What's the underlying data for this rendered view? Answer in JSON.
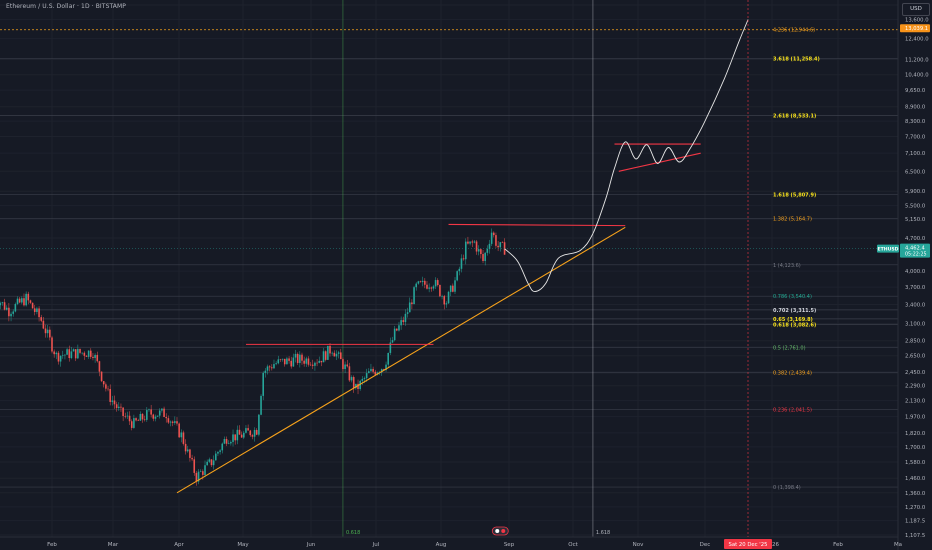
{
  "header": {
    "symbol_title": "Ethereum / U.S. Dollar · 1D · BITSTAMP",
    "currency": "USD"
  },
  "colors": {
    "background": "#161a25",
    "grid": "#1e222d",
    "up_candle": "#26a69a",
    "down_candle": "#ef5350",
    "trendline": "#f7a21b",
    "resistance": "#f23645",
    "projection": "#e6e6e6",
    "price_tag": "#26a69a",
    "target_tag": "#f7931a",
    "date_tag": "#f23645"
  },
  "chart_data": {
    "type": "candlestick",
    "x_axis_labels": [
      "Feb",
      "Mar",
      "Apr",
      "May",
      "Jun",
      "Jul",
      "Aug",
      "Sep",
      "Oct",
      "Nov",
      "Dec",
      "2026",
      "Feb",
      "Ma"
    ],
    "y_scale": "log",
    "y_tick_labels": [
      "14,600.0",
      "13,600.0",
      "12,400.0",
      "11,200.0",
      "10,400.0",
      "9,650.0",
      "8,900.0",
      "8,300.0",
      "7,700.0",
      "7,100.0",
      "6,500.0",
      "5,900.0",
      "5,500.0",
      "5,150.0",
      "4,700.0",
      "4,000.0",
      "3,700.0",
      "3,400.0",
      "3,100.0",
      "2,850.0",
      "2,650.0",
      "2,450.0",
      "2,290.0",
      "2,130.0",
      "1,970.0",
      "1,820.0",
      "1,700.0",
      "1,580.0",
      "1,460.0",
      "1,360.0",
      "1,270.0",
      "1,187.5",
      "1,107.5"
    ],
    "y_tick_values": [
      14600,
      13600,
      12400,
      11200,
      10400,
      9650,
      8900,
      8300,
      7700,
      7100,
      6500,
      5900,
      5500,
      5150,
      4700,
      4000,
      3700,
      3400,
      3100,
      2850,
      2650,
      2450,
      2290,
      2130,
      1970,
      1820,
      1700,
      1580,
      1460,
      1360,
      1270,
      1187.5,
      1107.5
    ],
    "current_price": {
      "symbol": "ETHUSD",
      "value": "4,462.4",
      "countdown": "05:22:25",
      "value_num": 4462.4
    },
    "target_price": {
      "value": "13,039.1",
      "value_num": 13039.1
    },
    "crosshair_date": "Sat 20 Dec '25",
    "fib_levels": [
      {
        "label": "4.236 (12,944.6)",
        "value": 12944.6,
        "color": "#f7a21b",
        "bold": false
      },
      {
        "label": "3.618 (11,258.4)",
        "value": 11258.4,
        "color": "#f7e11b",
        "bold": true
      },
      {
        "label": "2.618 (8,533.1)",
        "value": 8533.1,
        "color": "#f7e11b",
        "bold": true
      },
      {
        "label": "1.618 (5,807.9)",
        "value": 5807.9,
        "color": "#f7e11b",
        "bold": true
      },
      {
        "label": "1.382 (5,164.7)",
        "value": 5164.7,
        "color": "#f7a21b",
        "bold": false
      },
      {
        "label": "1 (4,123.6)",
        "value": 4123.6,
        "color": "#787b86",
        "bold": false
      },
      {
        "label": "0.786 (3,540.4)",
        "value": 3540.4,
        "color": "#22ab94",
        "bold": false
      },
      {
        "label": "0.702 (3,311.5)",
        "value": 3311.5,
        "color": "#d1d4dc",
        "bold": true
      },
      {
        "label": "0.65 (3,169.8)",
        "value": 3169.8,
        "color": "#f7e11b",
        "bold": true
      },
      {
        "label": "0.618 (3,082.6)",
        "value": 3082.6,
        "color": "#f7e11b",
        "bold": true
      },
      {
        "label": "0.5 (2,761.0)",
        "value": 2761.0,
        "color": "#66bb6a",
        "bold": false
      },
      {
        "label": "0.382 (2,439.4)",
        "value": 2439.4,
        "color": "#f7a21b",
        "bold": false
      },
      {
        "label": "0.236 (2,041.5)",
        "value": 2041.5,
        "color": "#f23645",
        "bold": false
      },
      {
        "label": "0 (1,398.4)",
        "value": 1398.4,
        "color": "#787b86",
        "bold": false
      }
    ],
    "vertical_markers": [
      {
        "label": "0.618",
        "date": "2025-06-16",
        "color": "#4caf50"
      },
      {
        "label": "1.618",
        "date": "2025-10-10",
        "color": "#b2b5be"
      }
    ],
    "projection_path": [
      {
        "date": "2025-08-30",
        "value": 4460
      },
      {
        "date": "2025-09-05",
        "value": 4200
      },
      {
        "date": "2025-09-10",
        "value": 3760
      },
      {
        "date": "2025-09-13",
        "value": 3620
      },
      {
        "date": "2025-09-18",
        "value": 3760
      },
      {
        "date": "2025-09-24",
        "value": 4260
      },
      {
        "date": "2025-10-04",
        "value": 4420
      },
      {
        "date": "2025-10-10",
        "value": 4800
      },
      {
        "date": "2025-10-16",
        "value": 5700
      },
      {
        "date": "2025-10-20",
        "value": 6600
      },
      {
        "date": "2025-10-25",
        "value": 7500
      },
      {
        "date": "2025-10-30",
        "value": 6900
      },
      {
        "date": "2025-11-04",
        "value": 7400
      },
      {
        "date": "2025-11-09",
        "value": 6750
      },
      {
        "date": "2025-11-14",
        "value": 7300
      },
      {
        "date": "2025-11-19",
        "value": 6800
      },
      {
        "date": "2025-11-24",
        "value": 7250
      },
      {
        "date": "2025-12-01",
        "value": 8300
      },
      {
        "date": "2025-12-10",
        "value": 10200
      },
      {
        "date": "2025-12-17",
        "value": 12300
      },
      {
        "date": "2025-12-21",
        "value": 13600
      }
    ],
    "drawn_lines": [
      {
        "kind": "trendline",
        "from": {
          "date": "2025-03-31",
          "value": 1360
        },
        "to": {
          "date": "2025-10-25",
          "value": 4950
        }
      },
      {
        "kind": "resistance",
        "from": {
          "date": "2025-05-02",
          "value": 2800
        },
        "to": {
          "date": "2025-07-28",
          "value": 2800
        }
      },
      {
        "kind": "resistance",
        "from": {
          "date": "2025-08-04",
          "value": 5020
        },
        "to": {
          "date": "2025-10-25",
          "value": 4990
        }
      },
      {
        "kind": "resistance",
        "from": {
          "date": "2025-10-20",
          "value": 7420
        },
        "to": {
          "date": "2025-11-29",
          "value": 7420
        }
      },
      {
        "kind": "resistance",
        "from": {
          "date": "2025-10-22",
          "value": 6500
        },
        "to": {
          "date": "2025-11-29",
          "value": 7100
        }
      }
    ],
    "price_closes": [
      {
        "date": "2025-01-05",
        "value": 3550
      },
      {
        "date": "2025-01-12",
        "value": 3300
      },
      {
        "date": "2025-01-20",
        "value": 3500
      },
      {
        "date": "2025-01-27",
        "value": 3150
      },
      {
        "date": "2025-02-03",
        "value": 2650
      },
      {
        "date": "2025-02-10",
        "value": 2680
      },
      {
        "date": "2025-02-20",
        "value": 2700
      },
      {
        "date": "2025-02-27",
        "value": 2200
      },
      {
        "date": "2025-03-05",
        "value": 2000
      },
      {
        "date": "2025-03-11",
        "value": 1900
      },
      {
        "date": "2025-03-18",
        "value": 2000
      },
      {
        "date": "2025-03-26",
        "value": 2000
      },
      {
        "date": "2025-04-02",
        "value": 1800
      },
      {
        "date": "2025-04-09",
        "value": 1470
      },
      {
        "date": "2025-04-16",
        "value": 1580
      },
      {
        "date": "2025-04-23",
        "value": 1780
      },
      {
        "date": "2025-04-30",
        "value": 1800
      },
      {
        "date": "2025-05-07",
        "value": 1850
      },
      {
        "date": "2025-05-10",
        "value": 2450
      },
      {
        "date": "2025-05-15",
        "value": 2550
      },
      {
        "date": "2025-05-25",
        "value": 2600
      },
      {
        "date": "2025-06-05",
        "value": 2600
      },
      {
        "date": "2025-06-11",
        "value": 2750
      },
      {
        "date": "2025-06-17",
        "value": 2500
      },
      {
        "date": "2025-06-22",
        "value": 2250
      },
      {
        "date": "2025-06-28",
        "value": 2430
      },
      {
        "date": "2025-07-05",
        "value": 2520
      },
      {
        "date": "2025-07-10",
        "value": 2950
      },
      {
        "date": "2025-07-15",
        "value": 3200
      },
      {
        "date": "2025-07-20",
        "value": 3700
      },
      {
        "date": "2025-07-28",
        "value": 3800
      },
      {
        "date": "2025-08-03",
        "value": 3450
      },
      {
        "date": "2025-08-08",
        "value": 3900
      },
      {
        "date": "2025-08-12",
        "value": 4500
      },
      {
        "date": "2025-08-16",
        "value": 4600
      },
      {
        "date": "2025-08-20",
        "value": 4200
      },
      {
        "date": "2025-08-24",
        "value": 4850
      },
      {
        "date": "2025-08-27",
        "value": 4500
      },
      {
        "date": "2025-08-30",
        "value": 4462
      }
    ]
  }
}
